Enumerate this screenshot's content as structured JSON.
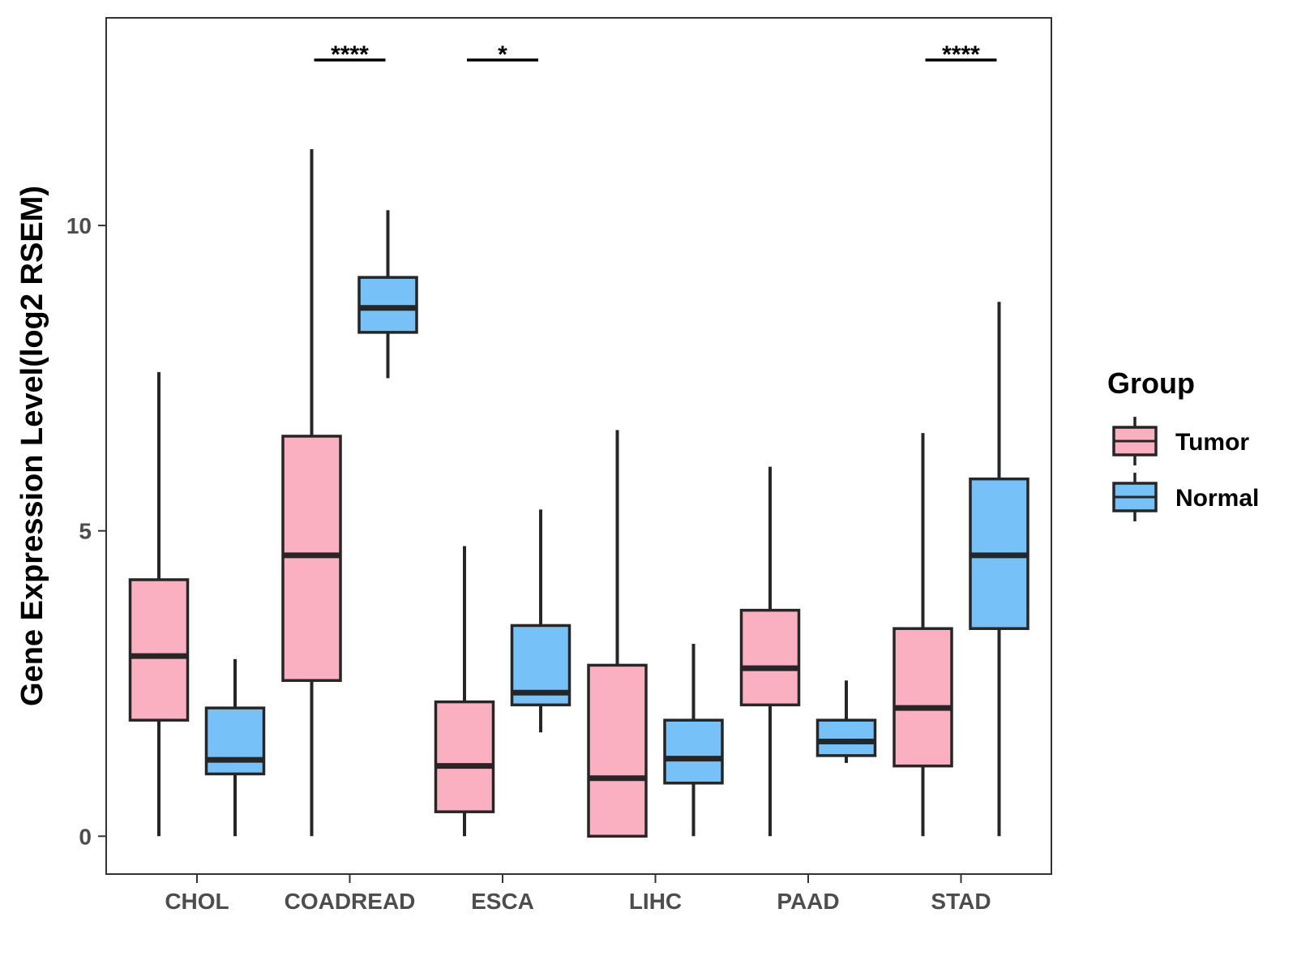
{
  "chart_data": {
    "type": "boxplot",
    "title": "",
    "xlabel": "",
    "ylabel": "Gene Expression Level(log2 RSEM)",
    "ylim": [
      -0.62,
      13.4
    ],
    "yticks": [
      0,
      5,
      10
    ],
    "grid": false,
    "legend_position": "right",
    "categories": [
      "CHOL",
      "COADREAD",
      "ESCA",
      "LIHC",
      "PAAD",
      "STAD"
    ],
    "legend": {
      "title": "Group",
      "items": [
        {
          "name": "Tumor",
          "color": "#FBB0C2"
        },
        {
          "name": "Normal",
          "color": "#75C1F8"
        }
      ]
    },
    "series": [
      {
        "name": "Tumor",
        "color": "#FBB0C2",
        "boxes": [
          {
            "whisker_low": 0,
            "q1": 1.9,
            "median": 2.95,
            "q3": 4.2,
            "whisker_high": 7.6
          },
          {
            "whisker_low": 0,
            "q1": 2.55,
            "median": 4.6,
            "q3": 6.55,
            "whisker_high": 11.25
          },
          {
            "whisker_low": 0,
            "q1": 0.4,
            "median": 1.15,
            "q3": 2.2,
            "whisker_high": 4.75
          },
          {
            "whisker_low": 0,
            "q1": 0,
            "median": 0.95,
            "q3": 2.8,
            "whisker_high": 6.65
          },
          {
            "whisker_low": 0,
            "q1": 2.15,
            "median": 2.75,
            "q3": 3.7,
            "whisker_high": 6.05
          },
          {
            "whisker_low": 0,
            "q1": 1.15,
            "median": 2.1,
            "q3": 3.4,
            "whisker_high": 6.6
          }
        ]
      },
      {
        "name": "Normal",
        "color": "#75C1F8",
        "boxes": [
          {
            "whisker_low": 0,
            "q1": 1.02,
            "median": 1.25,
            "q3": 2.1,
            "whisker_high": 2.9
          },
          {
            "whisker_low": 7.5,
            "q1": 8.25,
            "median": 8.65,
            "q3": 9.15,
            "whisker_high": 10.25
          },
          {
            "whisker_low": 1.7,
            "q1": 2.15,
            "median": 2.35,
            "q3": 3.45,
            "whisker_high": 5.35
          },
          {
            "whisker_low": 0,
            "q1": 0.87,
            "median": 1.27,
            "q3": 1.9,
            "whisker_high": 3.15
          },
          {
            "whisker_low": 1.2,
            "q1": 1.32,
            "median": 1.55,
            "q3": 1.9,
            "whisker_high": 2.55
          },
          {
            "whisker_low": 0,
            "q1": 3.4,
            "median": 4.6,
            "q3": 5.85,
            "whisker_high": 8.75
          }
        ]
      }
    ],
    "annotations": [
      {
        "category": "COADREAD",
        "label": "****"
      },
      {
        "category": "ESCA",
        "label": "*"
      },
      {
        "category": "STAD",
        "label": "****"
      }
    ]
  }
}
